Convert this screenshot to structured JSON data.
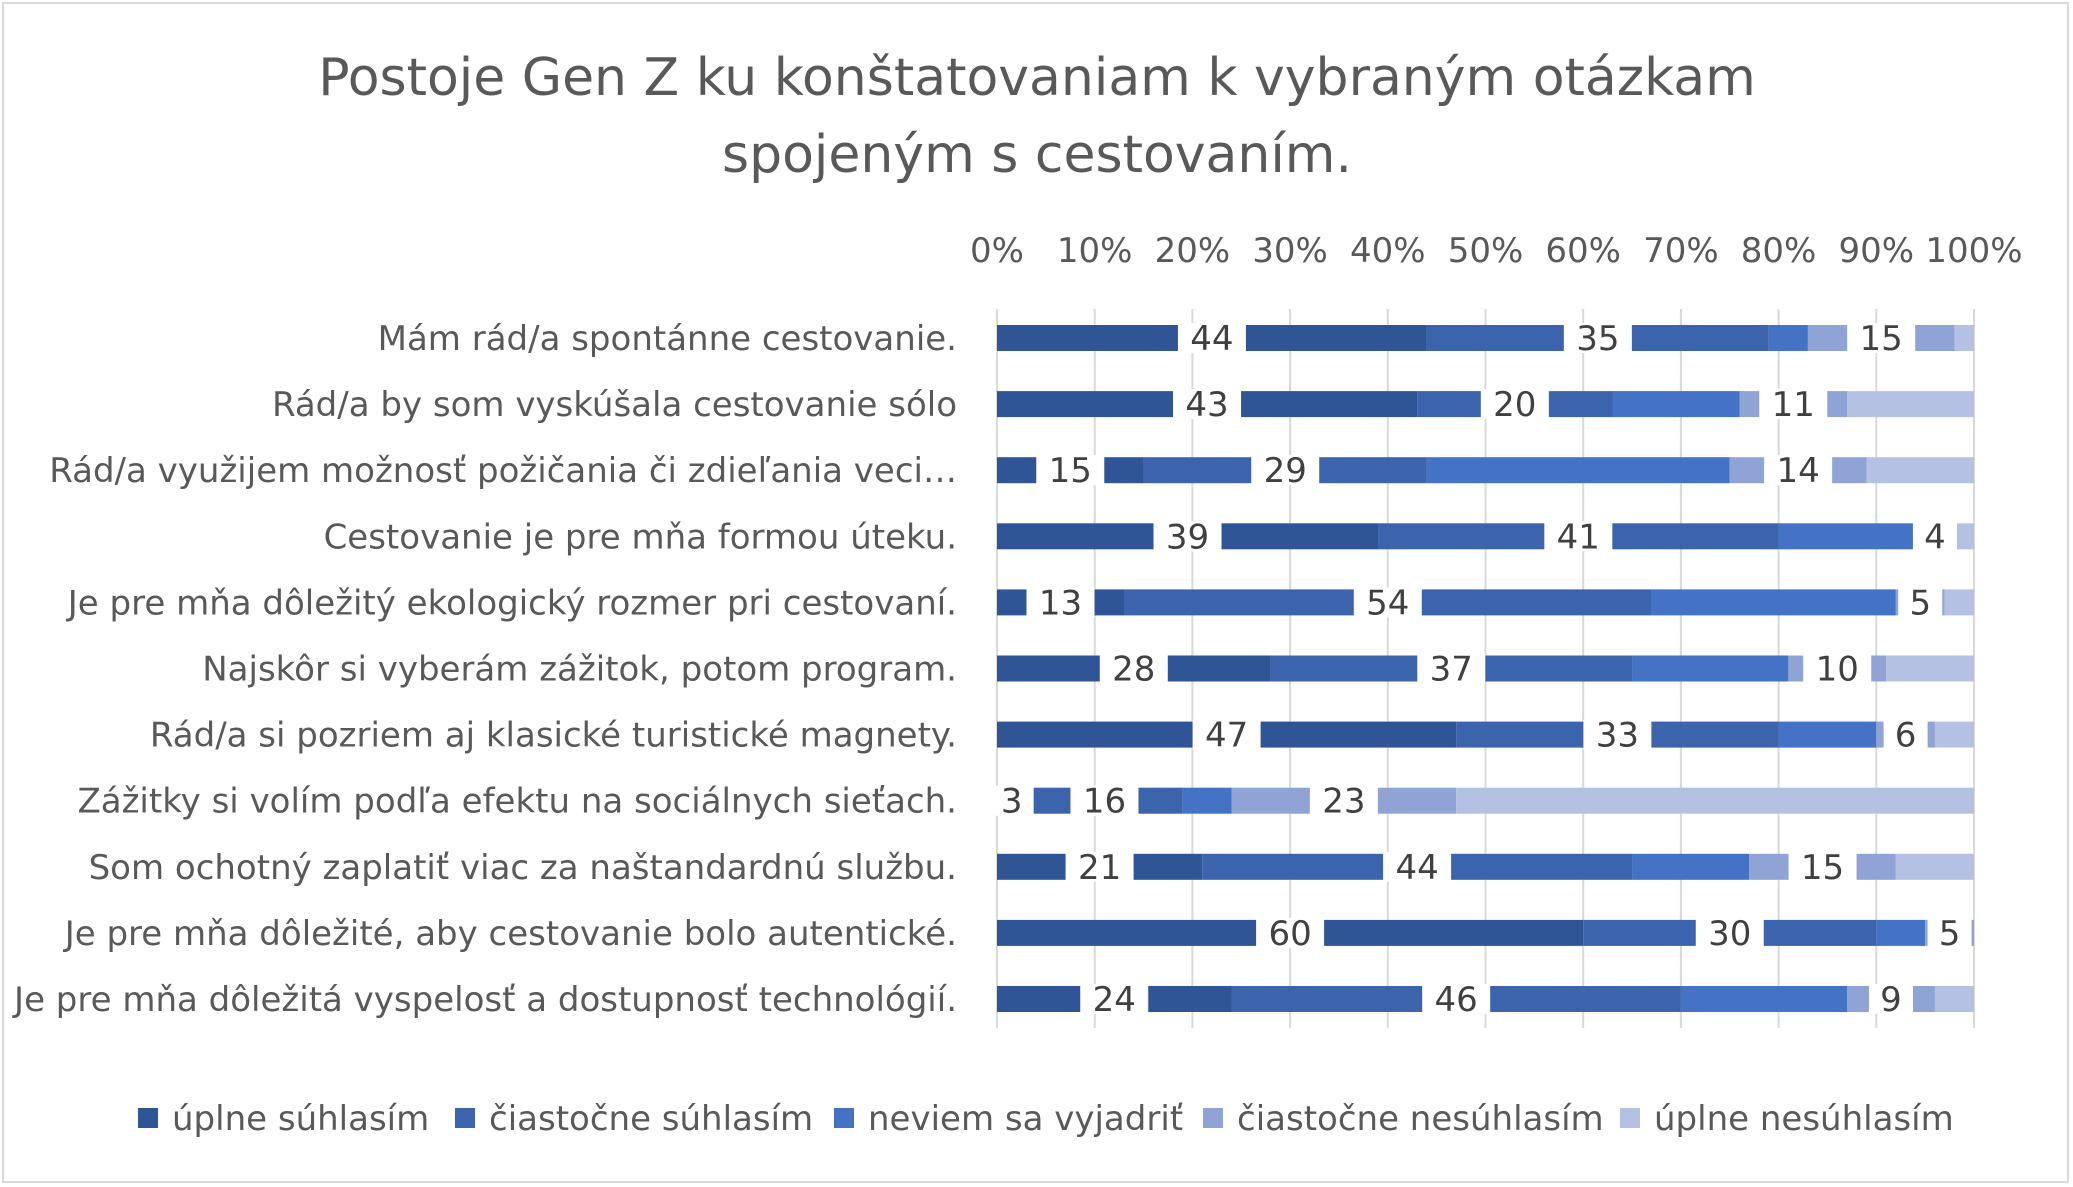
{
  "chart_data": {
    "type": "bar",
    "orientation": "horizontal",
    "stacked": "percent",
    "title": "Postoje Gen Z ku konštatovaniam k vybraným otázkam spojeným s cestovaním.",
    "title_lines": [
      "Postoje Gen Z ku konštatovaniam k vybraným otázkam",
      "spojeným s cestovaním."
    ],
    "xlabel": "",
    "ylabel": "",
    "xlim": [
      0,
      100
    ],
    "x_ticks": [
      "0%",
      "10%",
      "20%",
      "30%",
      "40%",
      "50%",
      "60%",
      "70%",
      "80%",
      "90%",
      "100%"
    ],
    "grid": true,
    "legend_position": "bottom",
    "categories": [
      "Mám rád/a spontánne cestovanie.",
      "Rád/a by som vyskúšala cestovanie sólo",
      "Rád/a využijem možnosť požičania či zdieľania veci…",
      "Cestovanie je pre mňa formou úteku.",
      "Je pre mňa dôležitý ekologický rozmer pri cestovaní.",
      "Najskôr si vyberám zážitok, potom program.",
      "Rád/a si pozriem aj klasické turistické magnety.",
      "Zážitky si volím podľa efektu na sociálnych sieťach.",
      "Som ochotný zaplatiť viac za naštandardnú službu.",
      "Je pre mňa dôležité, aby cestovanie bolo autentické.",
      "Je pre mňa dôležitá vyspelosť a dostupnosť technológií."
    ],
    "series": [
      {
        "name": "úplne súhlasím",
        "color": "#2F5597",
        "labeled": true,
        "values": [
          44,
          43,
          15,
          39,
          13,
          28,
          47,
          3,
          21,
          60,
          24
        ]
      },
      {
        "name": "čiastočne súhlasím",
        "color": "#3C64AC",
        "labeled": true,
        "values": [
          35,
          20,
          29,
          41,
          54,
          37,
          33,
          16,
          44,
          30,
          46
        ]
      },
      {
        "name": "neviem sa vyjadriť",
        "color": "#4472C4",
        "labeled": false,
        "values": [
          4,
          13,
          31,
          14,
          25,
          16,
          10,
          5,
          12,
          5,
          17
        ]
      },
      {
        "name": "čiastočne nesúhlasím",
        "color": "#8FA3D5",
        "labeled": true,
        "values": [
          15,
          11,
          14,
          4,
          5,
          10,
          6,
          23,
          15,
          5,
          9
        ]
      },
      {
        "name": "úplne nesúhlasím",
        "color": "#B4C1E3",
        "labeled": false,
        "values": [
          2,
          13,
          11,
          2,
          3,
          9,
          4,
          53,
          8,
          0,
          4
        ]
      }
    ]
  }
}
